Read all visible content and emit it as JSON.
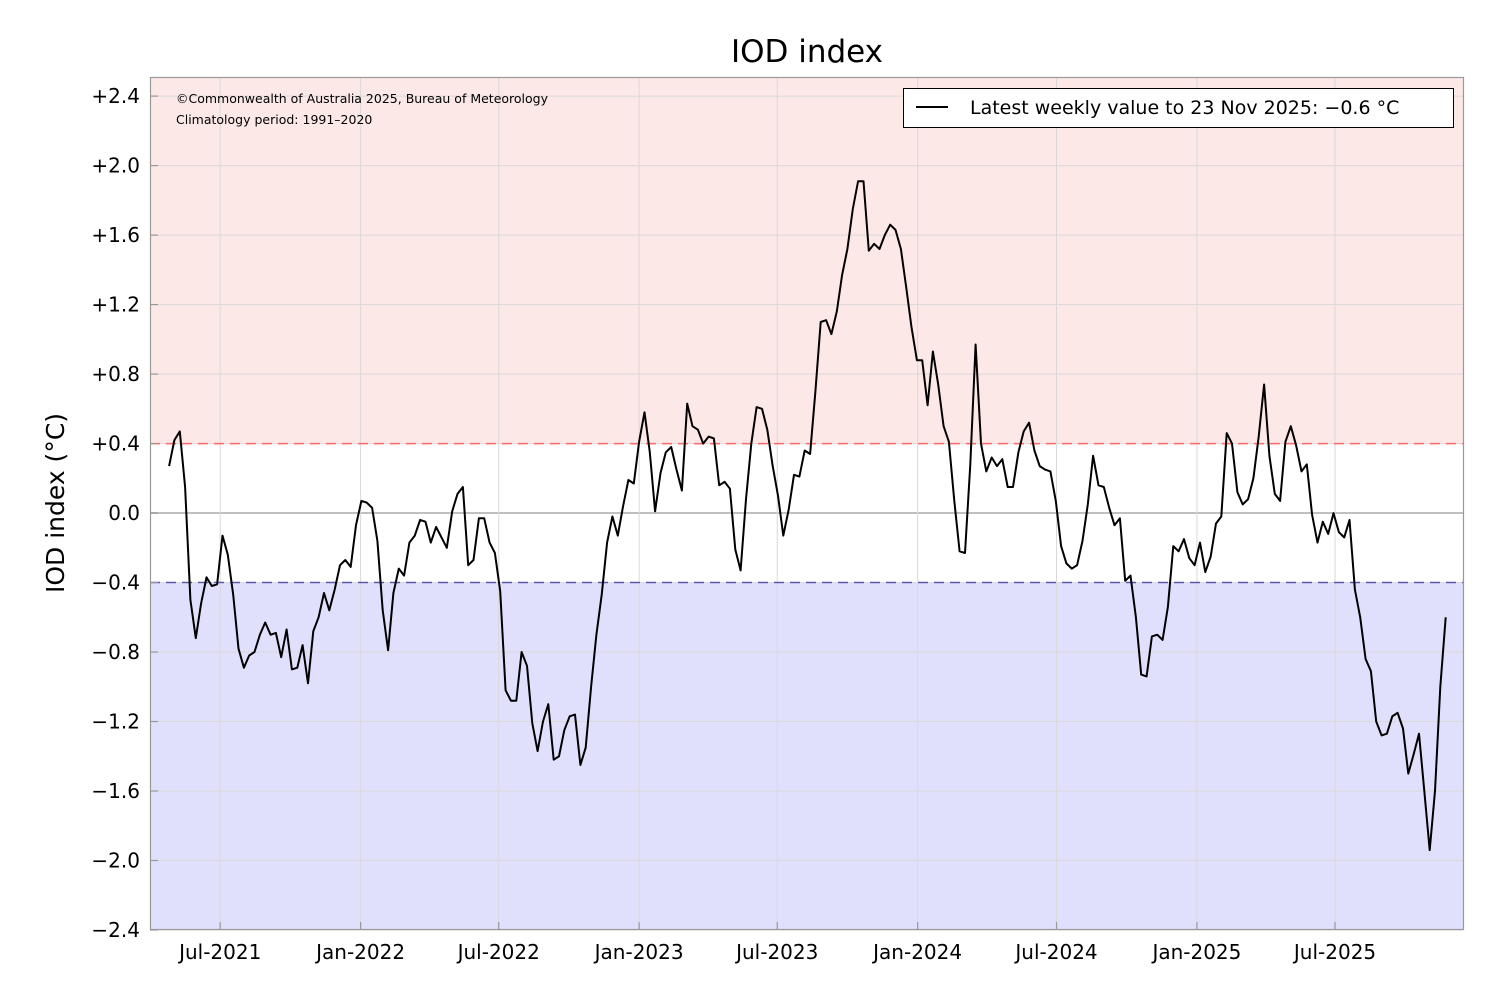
{
  "chart_data": {
    "type": "line",
    "title": "IOD index",
    "ylabel": "IOD index (°C)",
    "xlabel": "",
    "ylim": [
      -2.4,
      2.51
    ],
    "xlim": [
      "2021-03-31",
      "2025-12-17"
    ],
    "grid": true,
    "y_ticks": [
      "−2.4",
      "−2.0",
      "−1.6",
      "−1.2",
      "−0.8",
      "−0.4",
      "0.0",
      "+0.4",
      "+0.8",
      "+1.2",
      "+1.6",
      "+2.0",
      "+2.4"
    ],
    "y_tick_values": [
      -2.4,
      -2.0,
      -1.6,
      -1.2,
      -0.8,
      -0.4,
      0.0,
      0.4,
      0.8,
      1.2,
      1.6,
      2.0,
      2.4
    ],
    "x_ticks": [
      "Jul-2021",
      "Jan-2022",
      "Jul-2022",
      "Jan-2023",
      "Jul-2023",
      "Jan-2024",
      "Jul-2024",
      "Jan-2025",
      "Jul-2025"
    ],
    "x_tick_dates": [
      "2021-07-01",
      "2022-01-01",
      "2022-07-01",
      "2023-01-01",
      "2023-07-01",
      "2024-01-01",
      "2024-07-01",
      "2025-01-01",
      "2025-07-01"
    ],
    "thresholds": {
      "positive": 0.4,
      "negative": -0.4
    },
    "colors": {
      "line": "#000000",
      "positive_zone": "#fde8e8",
      "negative_zone": "#e0e0fc",
      "positive_threshold": "#ff6666",
      "negative_threshold": "#5a5aaa",
      "grid": "#d9d9d9",
      "zero_line": "#c0c0c0"
    },
    "annotations": [
      "©Commonwealth of Australia 2025, Bureau of Meteorology",
      "Climatology period: 1991–2020"
    ],
    "legend": {
      "label": "Latest weekly value to 23 Nov 2025: −0.6 °C",
      "position": "top-right"
    },
    "series": [
      {
        "frequency": "weekly",
        "last_date": "2025-11-23",
        "values": [
          0.27,
          0.42,
          0.47,
          0.15,
          -0.5,
          -0.72,
          -0.52,
          -0.37,
          -0.42,
          -0.41,
          -0.13,
          -0.24,
          -0.47,
          -0.78,
          -0.89,
          -0.82,
          -0.8,
          -0.7,
          -0.63,
          -0.7,
          -0.69,
          -0.83,
          -0.67,
          -0.9,
          -0.89,
          -0.76,
          -0.98,
          -0.68,
          -0.6,
          -0.46,
          -0.56,
          -0.44,
          -0.3,
          -0.27,
          -0.31,
          -0.07,
          0.07,
          0.06,
          0.03,
          -0.16,
          -0.56,
          -0.79,
          -0.46,
          -0.32,
          -0.36,
          -0.17,
          -0.13,
          -0.04,
          -0.05,
          -0.17,
          -0.08,
          -0.14,
          -0.2,
          0.01,
          0.11,
          0.15,
          -0.3,
          -0.27,
          -0.03,
          -0.03,
          -0.17,
          -0.23,
          -0.45,
          -1.02,
          -1.08,
          -1.08,
          -0.8,
          -0.88,
          -1.21,
          -1.37,
          -1.2,
          -1.1,
          -1.42,
          -1.4,
          -1.25,
          -1.17,
          -1.16,
          -1.45,
          -1.35,
          -1.0,
          -0.7,
          -0.47,
          -0.17,
          -0.02,
          -0.13,
          0.04,
          0.19,
          0.17,
          0.41,
          0.58,
          0.35,
          0.01,
          0.23,
          0.35,
          0.38,
          0.25,
          0.13,
          0.63,
          0.5,
          0.48,
          0.4,
          0.44,
          0.43,
          0.16,
          0.18,
          0.14,
          -0.21,
          -0.33,
          0.08,
          0.4,
          0.61,
          0.6,
          0.48,
          0.27,
          0.1,
          -0.13,
          0.02,
          0.22,
          0.21,
          0.36,
          0.34,
          0.7,
          1.1,
          1.11,
          1.03,
          1.16,
          1.37,
          1.52,
          1.75,
          1.91,
          1.91,
          1.51,
          1.55,
          1.52,
          1.6,
          1.66,
          1.63,
          1.52,
          1.3,
          1.07,
          0.88,
          0.88,
          0.62,
          0.93,
          0.74,
          0.5,
          0.41,
          0.07,
          -0.22,
          -0.23,
          0.28,
          0.97,
          0.4,
          0.24,
          0.32,
          0.27,
          0.31,
          0.15,
          0.15,
          0.35,
          0.47,
          0.52,
          0.36,
          0.27,
          0.25,
          0.24,
          0.07,
          -0.19,
          -0.29,
          -0.32,
          -0.3,
          -0.16,
          0.05,
          0.33,
          0.16,
          0.15,
          0.03,
          -0.07,
          -0.03,
          -0.39,
          -0.36,
          -0.6,
          -0.93,
          -0.94,
          -0.71,
          -0.7,
          -0.73,
          -0.54,
          -0.19,
          -0.22,
          -0.15,
          -0.26,
          -0.3,
          -0.17,
          -0.34,
          -0.25,
          -0.06,
          -0.02,
          0.46,
          0.4,
          0.12,
          0.05,
          0.08,
          0.2,
          0.44,
          0.74,
          0.33,
          0.11,
          0.07,
          0.41,
          0.5,
          0.39,
          0.24,
          0.28,
          -0.01,
          -0.17,
          -0.05,
          -0.12,
          0.0,
          -0.11,
          -0.14,
          -0.04,
          -0.44,
          -0.6,
          -0.84,
          -0.91,
          -1.2,
          -1.28,
          -1.27,
          -1.17,
          -1.15,
          -1.24,
          -1.5,
          -1.39,
          -1.27,
          -1.6,
          -1.94,
          -1.6,
          -1.0,
          -0.6
        ]
      }
    ]
  }
}
